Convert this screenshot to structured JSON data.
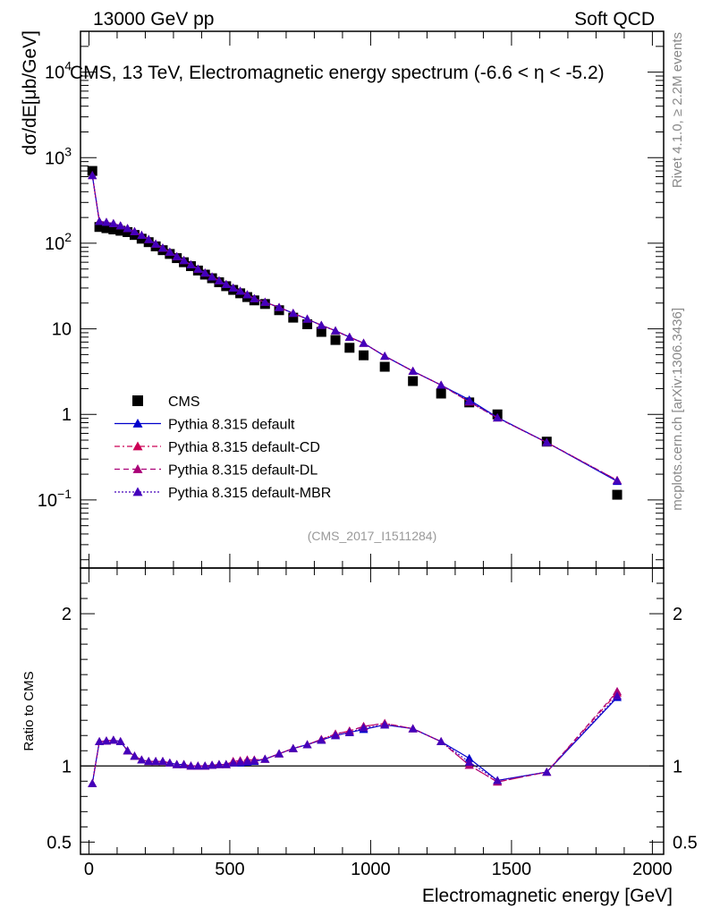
{
  "header": {
    "left": "13000 GeV pp",
    "right": "Soft QCD",
    "plot_title": "CMS, 13 TeV, Electromagnetic energy spectrum (-6.6 < η < -5.2)",
    "side_top": "Rivet 4.1.0, ≥ 2.2M events",
    "side_bottom": "mcplots.cern.ch [arXiv:1306.3436]",
    "reference": "(CMS_2017_I1511284)"
  },
  "chart_data": [
    {
      "type": "scatter",
      "panel": "main",
      "yscale": "log",
      "xlim": [
        -30,
        2040
      ],
      "ylim": [
        0.016,
        30000
      ],
      "xlabel": "Electromagnetic energy [GeV]",
      "ylabel": "dσ/dE[μb/GeV]",
      "y_ticks": [
        {
          "value": 10000,
          "base": "10",
          "exp": "4"
        },
        {
          "value": 1000,
          "base": "10",
          "exp": "3"
        },
        {
          "value": 100,
          "base": "10",
          "exp": "2"
        },
        {
          "value": 10,
          "base": "10",
          "exp": ""
        },
        {
          "value": 1,
          "base": "1",
          "exp": ""
        },
        {
          "value": 0.1,
          "base": "10",
          "exp": "−1"
        }
      ],
      "x": [
        12,
        37,
        62,
        87,
        112,
        137,
        162,
        187,
        212,
        237,
        262,
        287,
        312,
        337,
        362,
        387,
        412,
        437,
        462,
        487,
        512,
        537,
        562,
        587,
        625,
        675,
        725,
        775,
        825,
        875,
        925,
        975,
        1050,
        1150,
        1250,
        1350,
        1450,
        1625,
        1875
      ],
      "series": [
        {
          "name": "CMS",
          "style": "square",
          "color": "#000000",
          "values": [
            700,
            155,
            150,
            145,
            140,
            135,
            125,
            113,
            103,
            92,
            83,
            75,
            67,
            60,
            54,
            48,
            43,
            39,
            35,
            31.5,
            28.5,
            26,
            23.5,
            21.5,
            19.5,
            16.5,
            13.5,
            11.3,
            9.2,
            7.4,
            6.0,
            4.9,
            3.6,
            2.45,
            1.75,
            1.38,
            1.0,
            0.48,
            0.115
          ]
        },
        {
          "name": "Pythia 8.315 default",
          "style": "solid",
          "color": "#0000cc",
          "values": [
            620,
            180,
            176,
            170,
            160,
            149,
            137,
            124,
            111,
            98,
            88,
            79,
            70,
            63,
            56,
            50,
            45,
            40.5,
            36.5,
            33,
            30,
            27.5,
            25,
            22.5,
            20.5,
            17.8,
            15.2,
            13.0,
            11.0,
            9.5,
            8.0,
            6.8,
            4.8,
            3.2,
            2.2,
            1.48,
            0.92,
            0.47,
            0.165
          ]
        },
        {
          "name": "Pythia 8.315 default-CD",
          "style": "dashdot",
          "color": "#cc0055",
          "values": [
            620,
            180,
            176,
            170,
            160,
            149,
            137,
            124,
            111,
            98,
            88,
            79,
            70,
            63,
            56,
            50,
            45,
            40.5,
            36.5,
            33,
            30,
            27.5,
            25,
            22.5,
            20.5,
            17.8,
            15.2,
            13.0,
            11.0,
            9.5,
            8.0,
            6.8,
            4.8,
            3.2,
            2.2,
            1.4,
            0.91,
            0.47,
            0.17
          ]
        },
        {
          "name": "Pythia 8.315 default-DL",
          "style": "dashed",
          "color": "#aa0077",
          "values": [
            620,
            180,
            176,
            170,
            160,
            149,
            137,
            124,
            111,
            98,
            88,
            79,
            70,
            63,
            56,
            50,
            45,
            40.5,
            36.5,
            33,
            30,
            27.5,
            25,
            22.5,
            20.5,
            17.8,
            15.2,
            13.0,
            11.0,
            9.5,
            8.0,
            6.8,
            4.8,
            3.2,
            2.2,
            1.4,
            0.91,
            0.47,
            0.17
          ]
        },
        {
          "name": "Pythia 8.315 default-MBR",
          "style": "dotted",
          "color": "#4400bb",
          "values": [
            620,
            180,
            176,
            170,
            160,
            149,
            137,
            124,
            111,
            98,
            88,
            79,
            70,
            63,
            56,
            50,
            45,
            40.5,
            36.5,
            33,
            30,
            27.5,
            25,
            22.5,
            20.5,
            17.8,
            15.2,
            13.0,
            11.0,
            9.5,
            8.0,
            6.8,
            4.8,
            3.2,
            2.2,
            1.42,
            0.91,
            0.47,
            0.168
          ]
        }
      ]
    },
    {
      "type": "line",
      "panel": "ratio",
      "xlim": [
        -30,
        2040
      ],
      "ylim": [
        0.42,
        2.3
      ],
      "ylabel": "Ratio to CMS",
      "xlabel": "Electromagnetic energy [GeV]",
      "y_ticks": [
        {
          "value": 0.5,
          "label": "0.5"
        },
        {
          "value": 1,
          "label": "1"
        },
        {
          "value": 2,
          "label": "2"
        }
      ],
      "x_ticks": [
        {
          "value": 0,
          "label": "0"
        },
        {
          "value": 500,
          "label": "500"
        },
        {
          "value": 1000,
          "label": "1000"
        },
        {
          "value": 1500,
          "label": "1500"
        },
        {
          "value": 2000,
          "label": "2000"
        }
      ],
      "x": [
        12,
        37,
        62,
        87,
        112,
        137,
        162,
        187,
        212,
        237,
        262,
        287,
        312,
        337,
        362,
        387,
        412,
        437,
        462,
        487,
        512,
        537,
        562,
        587,
        625,
        675,
        725,
        775,
        825,
        875,
        925,
        975,
        1050,
        1150,
        1250,
        1350,
        1450,
        1625,
        1875
      ],
      "reference_line": 1,
      "series": [
        {
          "name": "Pythia 8.315 default",
          "values": [
            0.885,
            1.16,
            1.165,
            1.17,
            1.16,
            1.1,
            1.065,
            1.04,
            1.03,
            1.03,
            1.03,
            1.02,
            1.01,
            1.01,
            1.0,
            1.0,
            1.0,
            1.005,
            1.01,
            1.01,
            1.02,
            1.02,
            1.025,
            1.03,
            1.045,
            1.08,
            1.115,
            1.14,
            1.17,
            1.2,
            1.22,
            1.24,
            1.27,
            1.245,
            1.16,
            1.05,
            0.905,
            0.96,
            1.45
          ]
        },
        {
          "name": "Pythia 8.315 default-CD",
          "values": [
            0.885,
            1.16,
            1.165,
            1.17,
            1.16,
            1.1,
            1.065,
            1.04,
            1.03,
            1.03,
            1.03,
            1.02,
            1.01,
            1.01,
            1.0,
            1.0,
            1.0,
            1.005,
            1.01,
            1.01,
            1.03,
            1.035,
            1.04,
            1.04,
            1.045,
            1.08,
            1.115,
            1.14,
            1.175,
            1.21,
            1.23,
            1.26,
            1.28,
            1.245,
            1.16,
            1.005,
            0.895,
            0.96,
            1.48
          ]
        },
        {
          "name": "Pythia 8.315 default-DL",
          "values": [
            0.885,
            1.16,
            1.165,
            1.17,
            1.16,
            1.1,
            1.065,
            1.04,
            1.03,
            1.03,
            1.03,
            1.02,
            1.01,
            1.01,
            1.0,
            1.0,
            1.0,
            1.005,
            1.01,
            1.01,
            1.03,
            1.035,
            1.04,
            1.04,
            1.045,
            1.08,
            1.115,
            1.14,
            1.175,
            1.21,
            1.23,
            1.26,
            1.28,
            1.245,
            1.16,
            1.005,
            0.895,
            0.96,
            1.49
          ]
        },
        {
          "name": "Pythia 8.315 default-MBR",
          "values": [
            0.885,
            1.16,
            1.165,
            1.17,
            1.16,
            1.1,
            1.065,
            1.04,
            1.03,
            1.03,
            1.03,
            1.02,
            1.01,
            1.01,
            1.0,
            1.0,
            1.0,
            1.005,
            1.01,
            1.01,
            1.02,
            1.025,
            1.03,
            1.035,
            1.045,
            1.08,
            1.115,
            1.14,
            1.17,
            1.2,
            1.22,
            1.25,
            1.27,
            1.245,
            1.16,
            1.025,
            0.905,
            0.96,
            1.46
          ]
        }
      ]
    }
  ]
}
